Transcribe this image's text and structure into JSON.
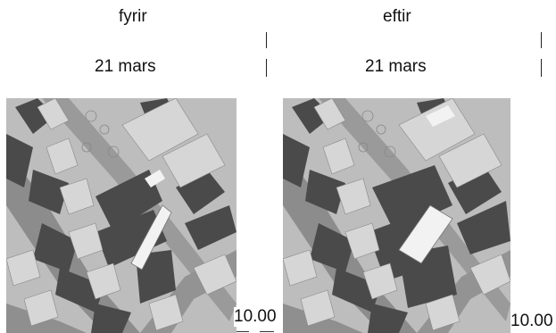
{
  "panels": [
    {
      "heading": "fyrir",
      "date": "21 mars",
      "time": "10.00"
    },
    {
      "heading": "eftir",
      "date": "21 mars",
      "time": "10.00"
    }
  ],
  "colors": {
    "road": "#8c8c8c",
    "ground": "#bdbdbd",
    "roof": "#d6d6d6",
    "shadow": "#4a4a4a",
    "building_highlight": "#f2f2f2"
  }
}
